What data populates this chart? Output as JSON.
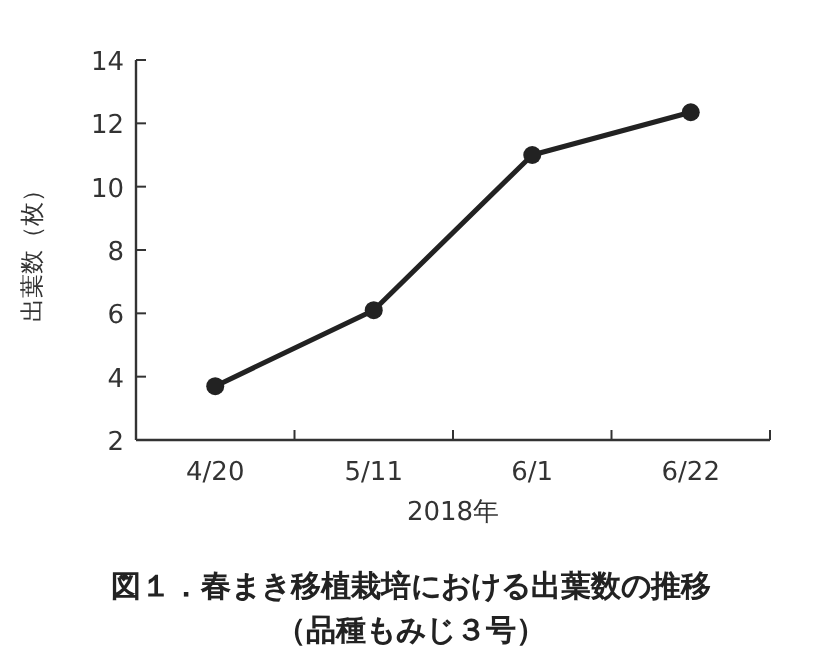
{
  "chart_data": {
    "type": "line",
    "title": "図１．春まき移植栽培における出葉数の推移",
    "subtitle": "（品種もみじ３号）",
    "xlabel": "2018年",
    "ylabel": "出葉数（枚）",
    "categories": [
      "4/20",
      "5/11",
      "6/1",
      "6/22"
    ],
    "series": [
      {
        "color": "#222222",
        "values": [
          3.7,
          6.1,
          11.0,
          12.35
        ]
      }
    ],
    "ylim": [
      2,
      14
    ],
    "yticks": [
      2,
      4,
      6,
      8,
      10,
      12,
      14
    ],
    "marker": "circle",
    "line_style": "solid"
  }
}
